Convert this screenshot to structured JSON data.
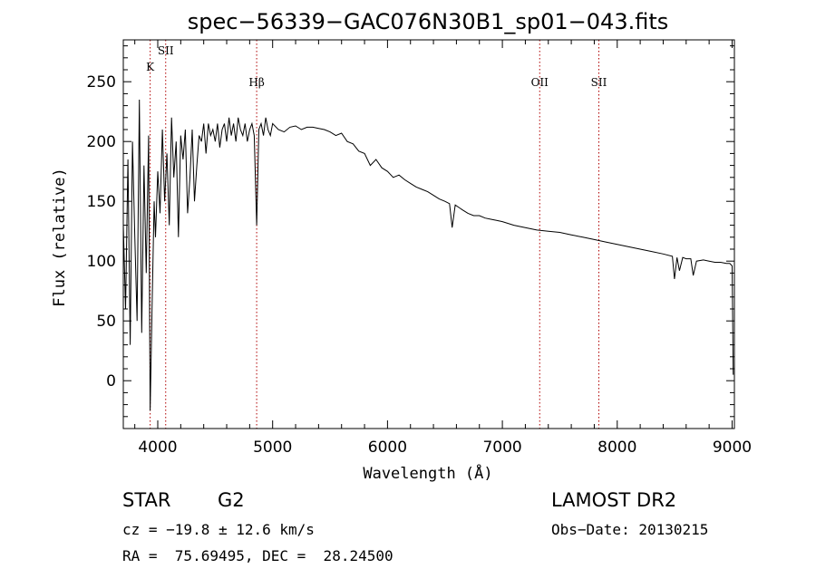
{
  "chart_data": {
    "type": "line",
    "title": "spec−56339−GAC076N30B1_sp01−043.fits",
    "xlabel": "Wavelength (Å)",
    "ylabel": "Flux (relative)",
    "xlim": [
      3700,
      9020
    ],
    "ylim": [
      -40,
      285
    ],
    "x_ticks": [
      4000,
      5000,
      6000,
      7000,
      8000,
      9000
    ],
    "y_ticks": [
      0,
      50,
      100,
      150,
      200,
      250
    ],
    "x_tick_labels": [
      "4000",
      "5000",
      "6000",
      "7000",
      "8000",
      "9000"
    ],
    "y_tick_labels": [
      "0",
      "50",
      "100",
      "150",
      "200",
      "250"
    ],
    "grid": false,
    "lines": [
      {
        "label": "K",
        "x": 3934
      },
      {
        "label": "SII",
        "x": 4069
      },
      {
        "label": "Hβ",
        "x": 4861
      },
      {
        "label": "OII",
        "x": 7325
      },
      {
        "label": "SII",
        "x": 7840
      }
    ],
    "series": [
      {
        "x": [
          3700,
          3720,
          3740,
          3760,
          3780,
          3800,
          3820,
          3840,
          3860,
          3880,
          3900,
          3920,
          3934,
          3950,
          3968,
          3980,
          4000,
          4020,
          4040,
          4060,
          4080,
          4100,
          4120,
          4140,
          4160,
          4180,
          4200,
          4220,
          4240,
          4260,
          4280,
          4300,
          4320,
          4340,
          4360,
          4380,
          4400,
          4420,
          4440,
          4460,
          4480,
          4500,
          4520,
          4540,
          4560,
          4580,
          4600,
          4620,
          4640,
          4660,
          4680,
          4700,
          4720,
          4740,
          4760,
          4780,
          4800,
          4820,
          4840,
          4861,
          4880,
          4900,
          4920,
          4940,
          4960,
          4980,
          5000,
          5050,
          5100,
          5150,
          5200,
          5250,
          5300,
          5350,
          5400,
          5450,
          5500,
          5550,
          5600,
          5650,
          5700,
          5750,
          5800,
          5850,
          5900,
          5950,
          6000,
          6050,
          6100,
          6150,
          6200,
          6250,
          6300,
          6350,
          6400,
          6450,
          6500,
          6540,
          6563,
          6590,
          6650,
          6700,
          6750,
          6800,
          6850,
          6900,
          6950,
          7000,
          7100,
          7200,
          7300,
          7400,
          7500,
          7600,
          7700,
          7800,
          7900,
          8000,
          8100,
          8200,
          8300,
          8400,
          8480,
          8498,
          8520,
          8542,
          8570,
          8600,
          8640,
          8662,
          8690,
          8750,
          8800,
          8850,
          8900,
          8950,
          8980,
          9000,
          9010
        ],
        "values": [
          130,
          60,
          185,
          30,
          200,
          120,
          50,
          235,
          40,
          180,
          90,
          205,
          -25,
          60,
          150,
          120,
          175,
          140,
          210,
          150,
          190,
          130,
          220,
          170,
          200,
          120,
          205,
          185,
          210,
          140,
          170,
          210,
          150,
          180,
          205,
          200,
          215,
          190,
          215,
          205,
          210,
          200,
          215,
          195,
          210,
          215,
          200,
          220,
          205,
          215,
          200,
          220,
          210,
          205,
          215,
          200,
          210,
          215,
          205,
          130,
          210,
          215,
          205,
          220,
          210,
          205,
          215,
          210,
          208,
          212,
          213,
          210,
          212,
          212,
          211,
          210,
          208,
          205,
          207,
          200,
          198,
          192,
          190,
          180,
          185,
          178,
          175,
          170,
          172,
          168,
          165,
          162,
          160,
          158,
          155,
          152,
          150,
          148,
          128,
          147,
          143,
          140,
          138,
          138,
          136,
          135,
          134,
          133,
          130,
          128,
          126,
          125,
          124,
          122,
          120,
          118,
          116,
          114,
          112,
          110,
          108,
          106,
          104,
          85,
          103,
          92,
          103,
          102,
          102,
          88,
          100,
          101,
          100,
          99,
          99,
          98,
          98,
          96,
          5
        ]
      }
    ]
  },
  "info": {
    "object_class": "STAR",
    "subclass": "G2",
    "survey": "LAMOST DR2",
    "redshift": "cz = −19.8 ± 12.6 km/s",
    "obs_date": "Obs−Date: 20130215",
    "coordinates": "RA =  75.69495, DEC =  28.24500"
  }
}
